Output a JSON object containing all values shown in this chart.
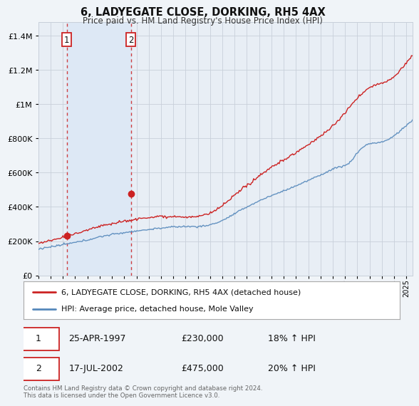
{
  "title": "6, LADYEGATE CLOSE, DORKING, RH5 4AX",
  "subtitle": "Price paid vs. HM Land Registry's House Price Index (HPI)",
  "ytick_values": [
    0,
    200000,
    400000,
    600000,
    800000,
    1000000,
    1200000,
    1400000
  ],
  "ylim": [
    0,
    1480000
  ],
  "xlim_start": 1995.0,
  "xlim_end": 2025.5,
  "transaction1": {
    "date_num": 1997.32,
    "price": 230000,
    "label": "1",
    "date_str": "25-APR-1997",
    "hpi_pct": "18% ↑ HPI"
  },
  "transaction2": {
    "date_num": 2002.54,
    "price": 475000,
    "label": "2",
    "date_str": "17-JUL-2002",
    "hpi_pct": "20% ↑ HPI"
  },
  "legend1_label": "6, LADYEGATE CLOSE, DORKING, RH5 4AX (detached house)",
  "legend2_label": "HPI: Average price, detached house, Mole Valley",
  "footer": "Contains HM Land Registry data © Crown copyright and database right 2024.\nThis data is licensed under the Open Government Licence v3.0.",
  "house_color": "#cc2222",
  "hpi_color": "#5588bb",
  "span_color": "#dde8f5",
  "background_color": "#f0f4f8",
  "plot_bg_color": "#e8eef5",
  "grid_color": "#c8d0da"
}
